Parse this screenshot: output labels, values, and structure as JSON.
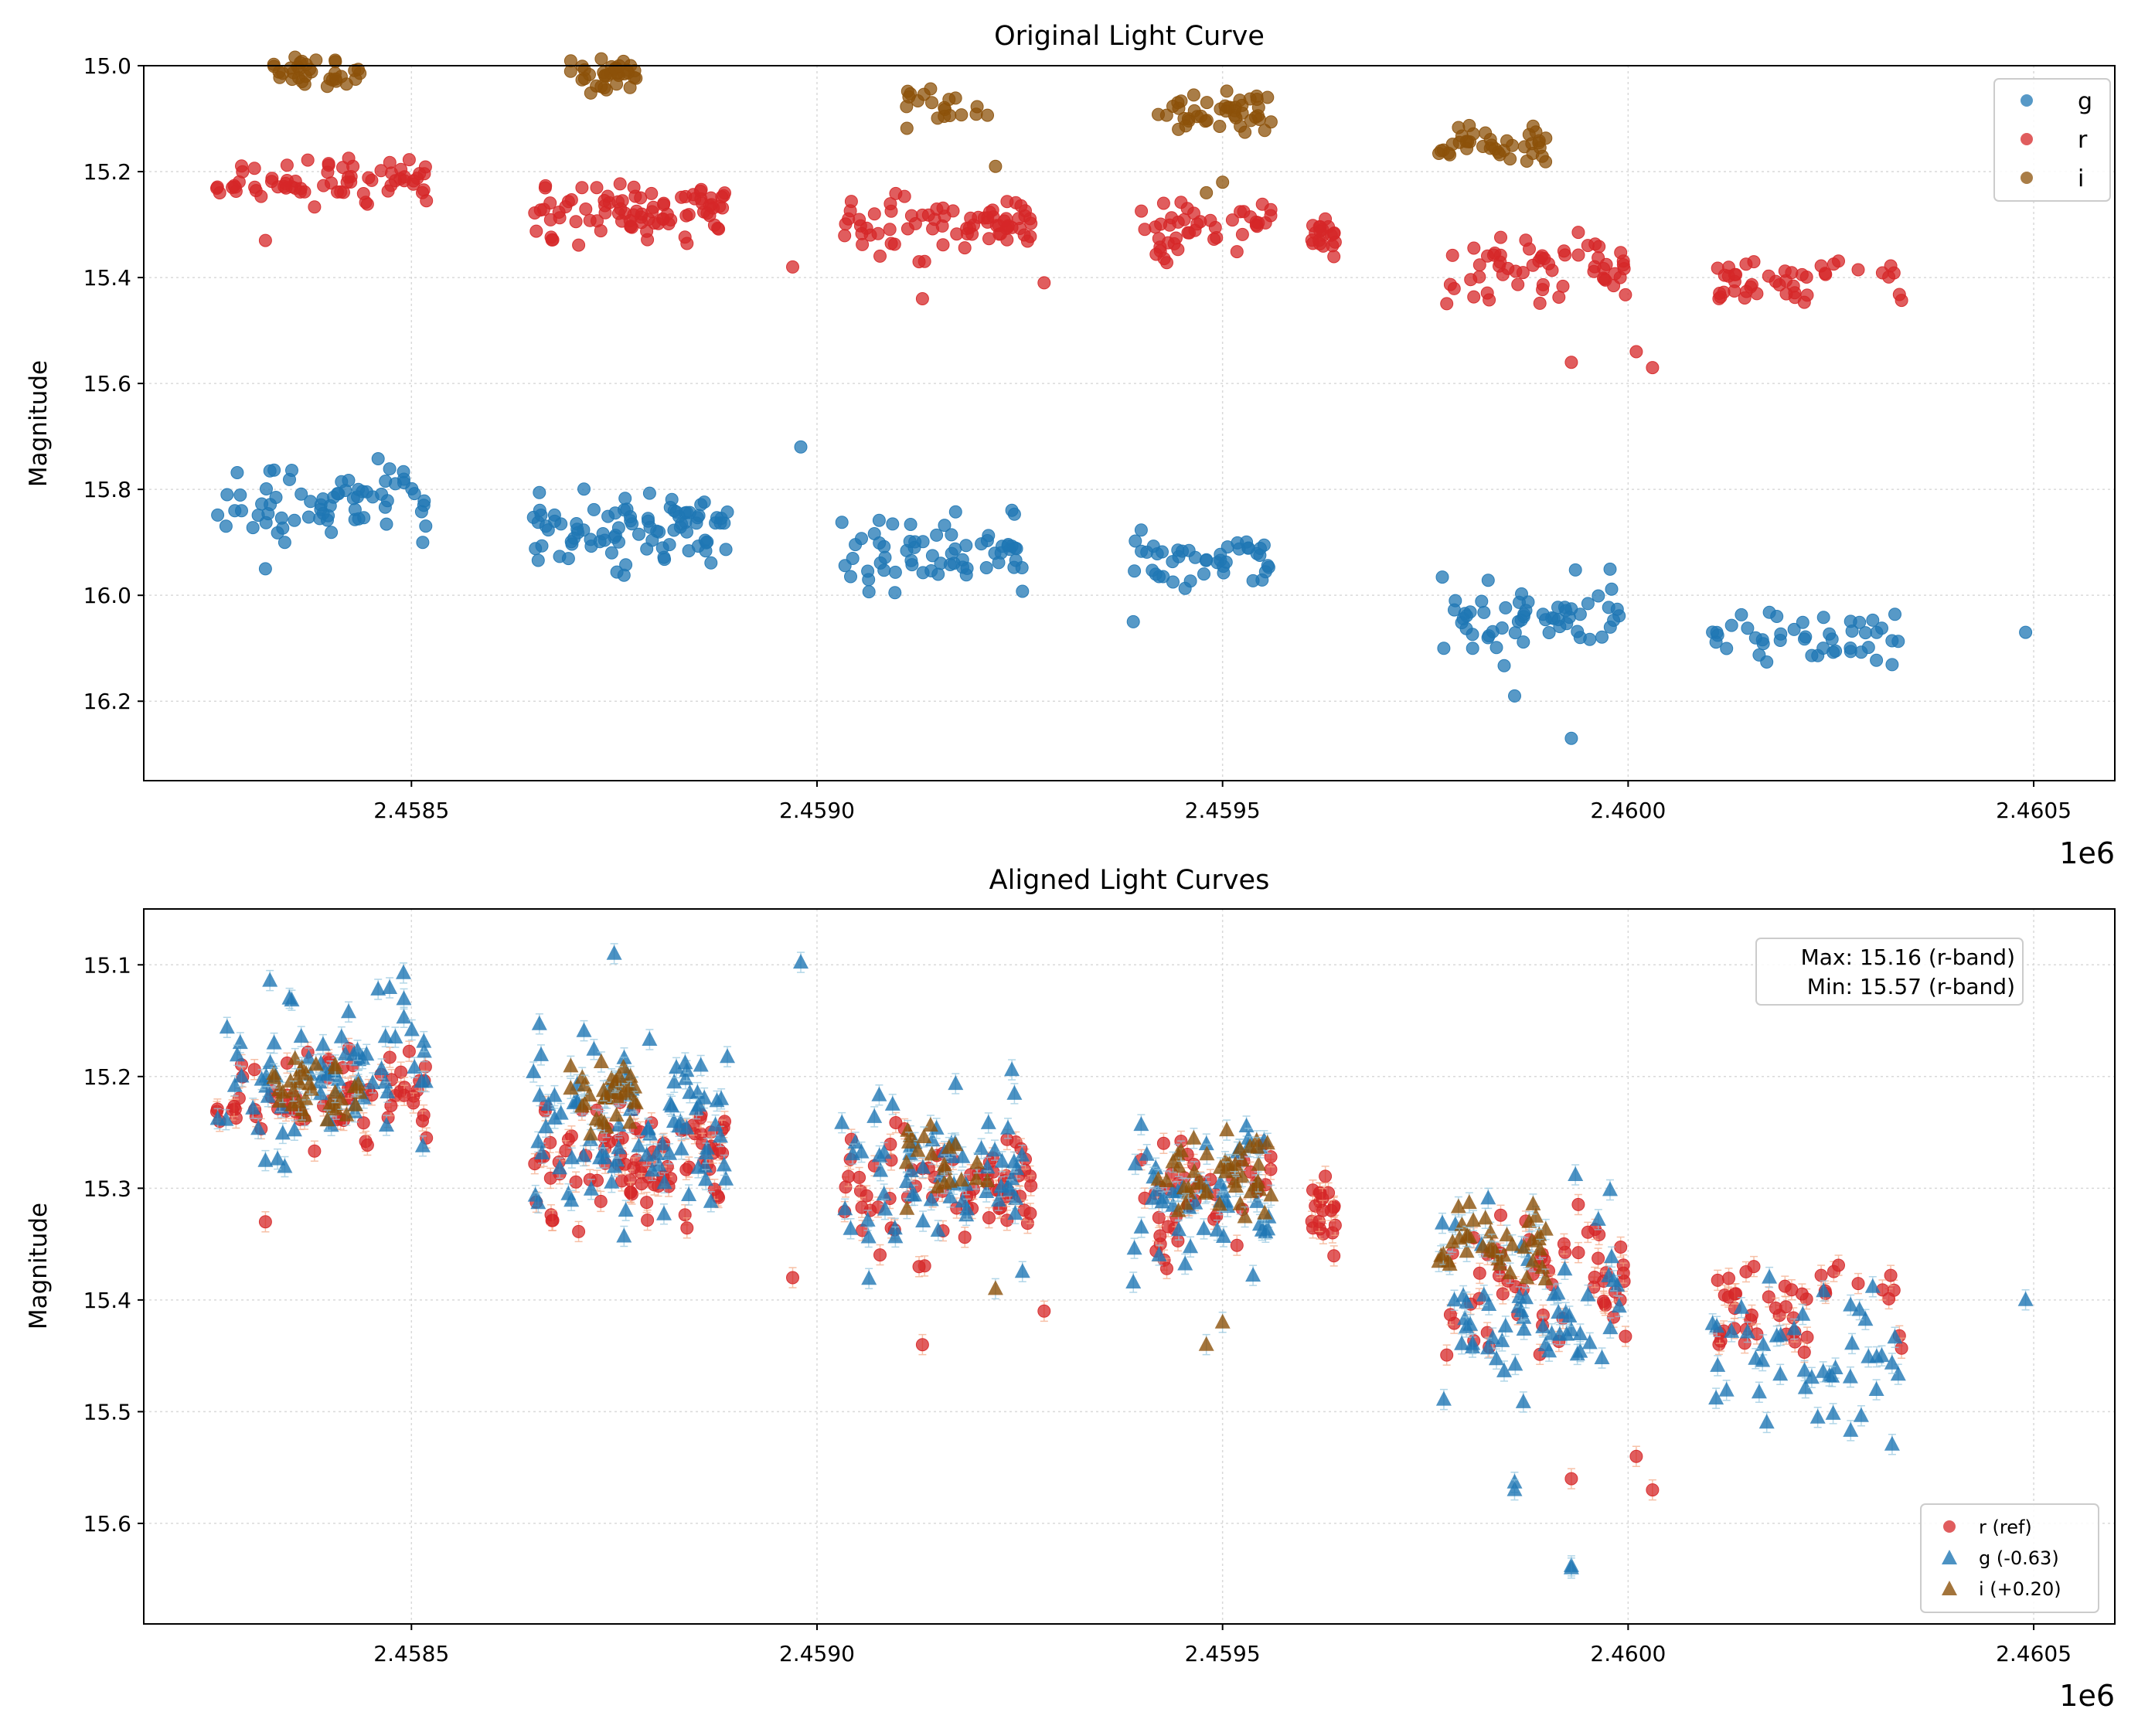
{
  "chart_data": [
    {
      "type": "scatter",
      "title": "Original Light Curve",
      "xlabel": "",
      "ylabel": "Magnitude",
      "x_offset_label": "1e6",
      "xlim": [
        2458170,
        2460600
      ],
      "ylim": [
        15.0,
        16.35
      ],
      "y_inverted": true,
      "grid": true,
      "xticks": [
        2458500,
        2459000,
        2459500,
        2460000,
        2460500
      ],
      "xtick_labels": [
        "2.4585",
        "2.4590",
        "2.4595",
        "2.4600",
        "2.4605"
      ],
      "yticks": [
        15.0,
        15.2,
        15.4,
        15.6,
        15.8,
        16.0,
        16.2
      ],
      "ytick_labels": [
        "15.0",
        "15.2",
        "15.4",
        "15.6",
        "15.8",
        "16.0",
        "16.2"
      ],
      "legend": {
        "position": "top-right",
        "entries": [
          "g",
          "r",
          "i"
        ]
      },
      "series": [
        {
          "name": "g",
          "marker": "circle",
          "color": "#1f77b4",
          "clusters": [
            {
              "x_range": [
                2458260,
                2458520
              ],
              "y_center": 15.82,
              "y_spread": 0.05,
              "n": 70
            },
            {
              "x_range": [
                2458650,
                2458890
              ],
              "y_center": 15.88,
              "y_spread": 0.05,
              "n": 90
            },
            {
              "x_range": [
                2459030,
                2459260
              ],
              "y_center": 15.92,
              "y_spread": 0.05,
              "n": 65
            },
            {
              "x_range": [
                2459390,
                2459560
              ],
              "y_center": 15.94,
              "y_spread": 0.04,
              "n": 45
            },
            {
              "x_range": [
                2459770,
                2459990
              ],
              "y_center": 16.04,
              "y_spread": 0.05,
              "n": 60
            },
            {
              "x_range": [
                2460100,
                2460340
              ],
              "y_center": 16.08,
              "y_spread": 0.04,
              "n": 45
            }
          ],
          "outliers": [
            [
              2458980,
              15.72
            ],
            [
              2458320,
              15.95
            ],
            [
              2459390,
              16.05
            ],
            [
              2459860,
              16.19
            ],
            [
              2459930,
              16.27
            ],
            [
              2460490,
              16.07
            ]
          ]
        },
        {
          "name": "r",
          "marker": "circle",
          "color": "#d62728",
          "clusters": [
            {
              "x_range": [
                2458260,
                2458520
              ],
              "y_center": 15.22,
              "y_spread": 0.03,
              "n": 70
            },
            {
              "x_range": [
                2458650,
                2458890
              ],
              "y_center": 15.27,
              "y_spread": 0.04,
              "n": 90
            },
            {
              "x_range": [
                2459030,
                2459270
              ],
              "y_center": 15.3,
              "y_spread": 0.04,
              "n": 75
            },
            {
              "x_range": [
                2459390,
                2459560
              ],
              "y_center": 15.31,
              "y_spread": 0.04,
              "n": 45
            },
            {
              "x_range": [
                2459610,
                2459640
              ],
              "y_center": 15.32,
              "y_spread": 0.03,
              "n": 20
            },
            {
              "x_range": [
                2459770,
                2460000
              ],
              "y_center": 15.38,
              "y_spread": 0.04,
              "n": 60
            },
            {
              "x_range": [
                2460100,
                2460340
              ],
              "y_center": 15.41,
              "y_spread": 0.03,
              "n": 45
            }
          ],
          "outliers": [
            [
              2458320,
              15.33
            ],
            [
              2458970,
              15.38
            ],
            [
              2459130,
              15.44
            ],
            [
              2459280,
              15.41
            ],
            [
              2459930,
              15.56
            ],
            [
              2460030,
              15.57
            ],
            [
              2460010,
              15.54
            ]
          ]
        },
        {
          "name": "i",
          "marker": "circle",
          "color": "#8c510a",
          "clusters": [
            {
              "x_range": [
                2458330,
                2458440
              ],
              "y_center": 15.01,
              "y_spread": 0.02,
              "n": 35
            },
            {
              "x_range": [
                2458690,
                2458780
              ],
              "y_center": 15.02,
              "y_spread": 0.02,
              "n": 35
            },
            {
              "x_range": [
                2459110,
                2459230
              ],
              "y_center": 15.08,
              "y_spread": 0.03,
              "n": 20
            },
            {
              "x_range": [
                2459420,
                2459560
              ],
              "y_center": 15.09,
              "y_spread": 0.03,
              "n": 45
            },
            {
              "x_range": [
                2459760,
                2459900
              ],
              "y_center": 15.15,
              "y_spread": 0.03,
              "n": 40
            }
          ],
          "outliers": [
            [
              2459220,
              15.19
            ],
            [
              2459500,
              15.22
            ],
            [
              2459480,
              15.24
            ]
          ]
        }
      ]
    },
    {
      "type": "scatter",
      "title": "Aligned Light Curves",
      "xlabel": "",
      "ylabel": "Magnitude",
      "x_offset_label": "1e6",
      "xlim": [
        2458170,
        2460600
      ],
      "ylim": [
        15.05,
        15.69
      ],
      "y_inverted": true,
      "grid": true,
      "xticks": [
        2458500,
        2459000,
        2459500,
        2460000,
        2460500
      ],
      "xtick_labels": [
        "2.4585",
        "2.4590",
        "2.4595",
        "2.4600",
        "2.4605"
      ],
      "yticks": [
        15.1,
        15.2,
        15.3,
        15.4,
        15.5,
        15.6
      ],
      "ytick_labels": [
        "15.1",
        "15.2",
        "15.3",
        "15.4",
        "15.5",
        "15.6"
      ],
      "annotation": [
        "Max: 15.16 (r-band)",
        "Min: 15.57 (r-band)"
      ],
      "legend": {
        "position": "bottom-right",
        "entries": [
          "r (ref)",
          "g (-0.63)",
          "i (+0.20)"
        ]
      },
      "series": [
        {
          "name": "r (ref)",
          "marker": "circle",
          "color": "#d62728",
          "offset": 0.0
        },
        {
          "name": "g (-0.63)",
          "marker": "triangle",
          "color": "#1f77b4",
          "offset": -0.63
        },
        {
          "name": "i (+0.20)",
          "marker": "triangle",
          "color": "#8c510a",
          "offset": 0.2
        }
      ],
      "outliers": [
        [
          2458750,
          15.09
        ],
        [
          2459860,
          15.57
        ],
        [
          2459930,
          15.64
        ]
      ]
    }
  ]
}
